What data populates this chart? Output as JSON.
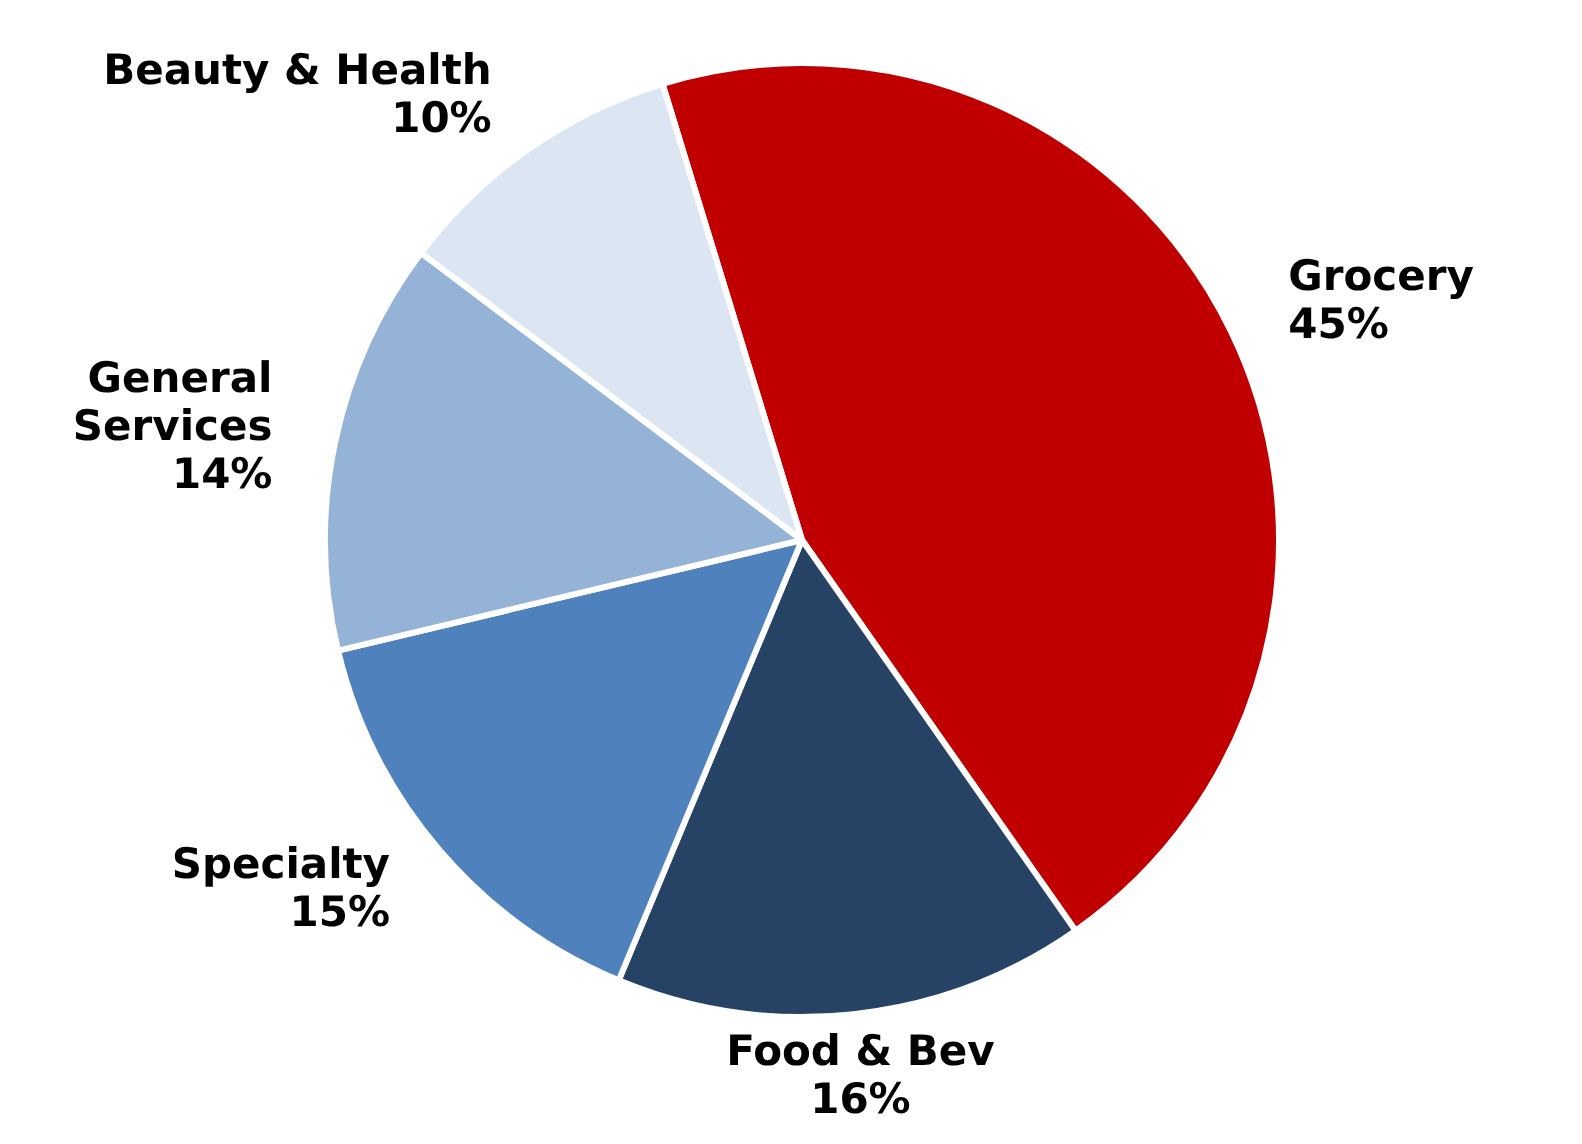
{
  "chart_data": {
    "type": "pie",
    "categories": [
      "Grocery",
      "Food & Bev",
      "Specialty",
      "General Services",
      "Beauty & Health"
    ],
    "values": [
      45,
      16,
      15,
      14,
      10
    ],
    "colors": [
      "#c00000",
      "#264265",
      "#4f81bd",
      "#95b3d7",
      "#dce6f2"
    ],
    "value_labels": [
      "45%",
      "16%",
      "15%",
      "14%",
      "10%"
    ],
    "legend": false
  }
}
